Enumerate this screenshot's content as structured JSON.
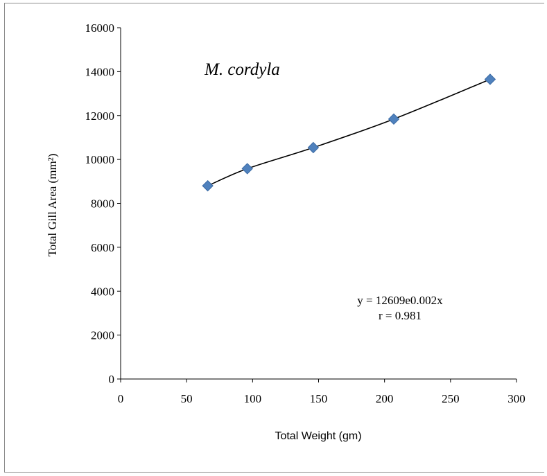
{
  "chart_data": {
    "type": "scatter",
    "title": "M. cordyla",
    "xlabel": "Total Weight (gm)",
    "ylabel": "Total Gill Area (mm²)",
    "xlim": [
      0,
      300
    ],
    "ylim": [
      0,
      16000
    ],
    "x_ticks": [
      "0",
      "50",
      "100",
      "150",
      "200",
      "250",
      "300"
    ],
    "y_ticks": [
      "0",
      "2000",
      "4000",
      "6000",
      "8000",
      "10000",
      "12000",
      "14000",
      "16000"
    ],
    "grid": false,
    "legend": "none",
    "series": [
      {
        "x": [
          66,
          96,
          146,
          207,
          280
        ],
        "y": [
          8800,
          9580,
          10540,
          11840,
          13650
        ]
      }
    ],
    "trendline": {
      "type": "exponential",
      "a": 12609,
      "b": 0.002,
      "x_range": [
        66,
        280
      ]
    },
    "annotations": {
      "equation": "y = 12609e0.002x",
      "r": "r = 0.981"
    },
    "colors": {
      "marker": "#4f81bd",
      "marker_edge": "#3a6aa4",
      "trendline": "#000000",
      "axis": "#000000"
    }
  }
}
